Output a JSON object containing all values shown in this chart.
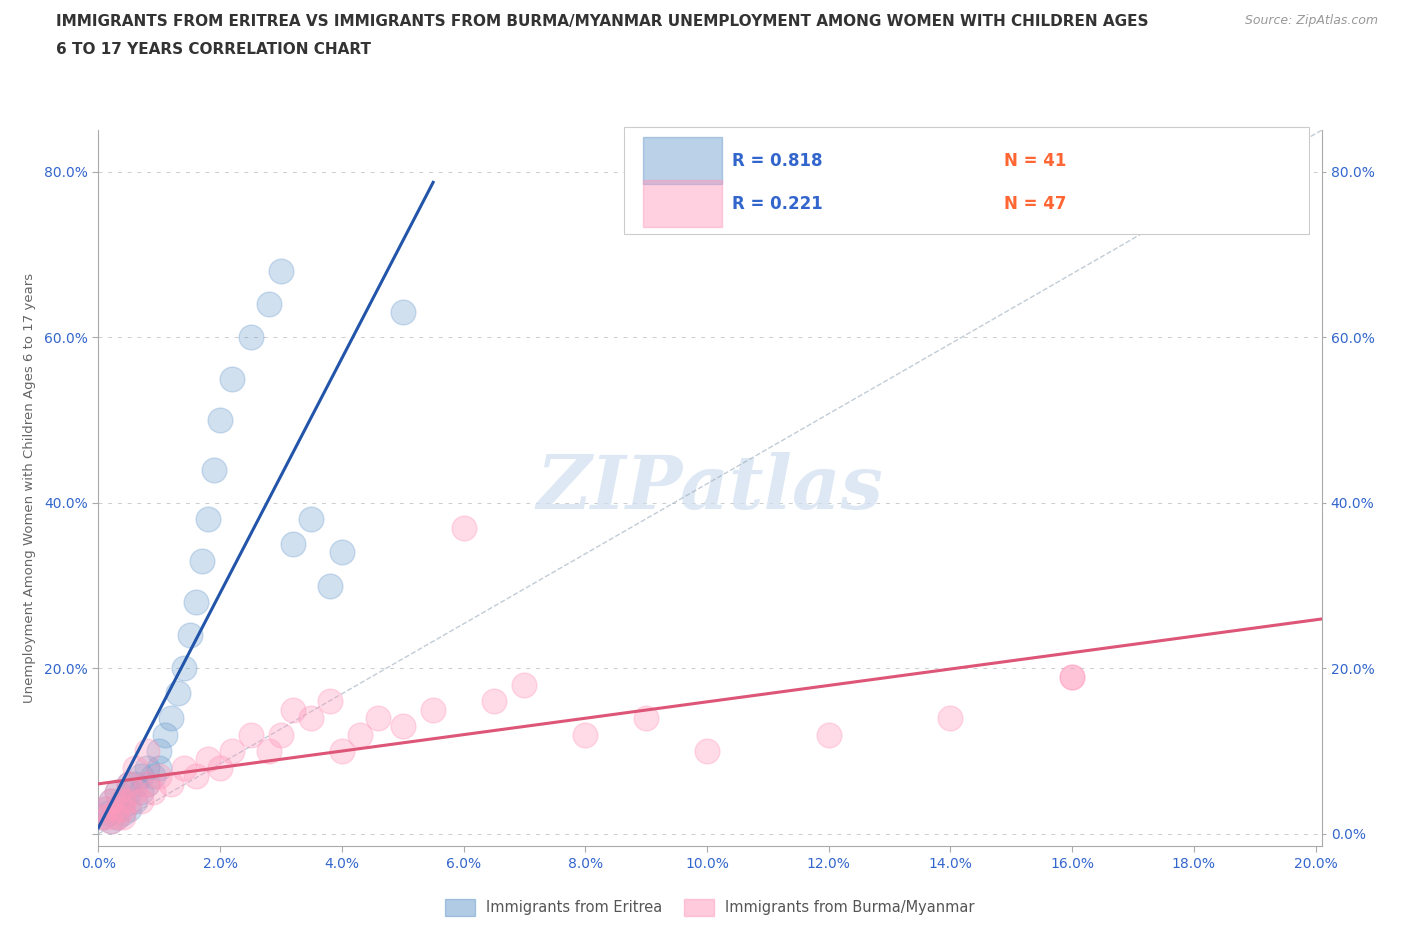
{
  "title_line1": "IMMIGRANTS FROM ERITREA VS IMMIGRANTS FROM BURMA/MYANMAR UNEMPLOYMENT AMONG WOMEN WITH CHILDREN AGES",
  "title_line2": "6 TO 17 YEARS CORRELATION CHART",
  "source": "Source: ZipAtlas.com",
  "ylabel": "Unemployment Among Women with Children Ages 6 to 17 years",
  "xlim": [
    0.0,
    0.201
  ],
  "ylim": [
    -0.015,
    0.85
  ],
  "xticks": [
    0.0,
    0.02,
    0.04,
    0.06,
    0.08,
    0.1,
    0.12,
    0.14,
    0.16,
    0.18,
    0.2
  ],
  "yticks": [
    0.0,
    0.2,
    0.4,
    0.6,
    0.8
  ],
  "xtick_labels": [
    "0.0%",
    "2.0%",
    "4.0%",
    "6.0%",
    "8.0%",
    "10.0%",
    "12.0%",
    "14.0%",
    "16.0%",
    "18.0%",
    "20.0%"
  ],
  "ytick_labels_left": [
    "",
    "20.0%",
    "40.0%",
    "60.0%",
    "80.0%"
  ],
  "ytick_labels_right": [
    "0.0%",
    "20.0%",
    "40.0%",
    "60.0%",
    "80.0%"
  ],
  "eritrea_color": "#6699cc",
  "burma_color": "#ff99bb",
  "eritrea_R": 0.818,
  "eritrea_N": 41,
  "burma_R": 0.221,
  "burma_N": 47,
  "legend_R_color": "#3366cc",
  "legend_N_color": "#ff6633",
  "watermark_color": "#d0dff0",
  "eritrea_x": [
    0.0005,
    0.001,
    0.0015,
    0.002,
    0.002,
    0.003,
    0.003,
    0.003,
    0.004,
    0.004,
    0.005,
    0.005,
    0.005,
    0.006,
    0.006,
    0.007,
    0.007,
    0.008,
    0.008,
    0.009,
    0.01,
    0.01,
    0.011,
    0.012,
    0.013,
    0.014,
    0.015,
    0.016,
    0.017,
    0.018,
    0.019,
    0.02,
    0.022,
    0.025,
    0.028,
    0.03,
    0.032,
    0.035,
    0.038,
    0.04,
    0.05
  ],
  "eritrea_y": [
    0.02,
    0.03,
    0.025,
    0.015,
    0.04,
    0.02,
    0.03,
    0.05,
    0.025,
    0.04,
    0.03,
    0.05,
    0.06,
    0.04,
    0.06,
    0.05,
    0.07,
    0.06,
    0.08,
    0.07,
    0.08,
    0.1,
    0.12,
    0.14,
    0.17,
    0.2,
    0.24,
    0.28,
    0.33,
    0.38,
    0.44,
    0.5,
    0.55,
    0.6,
    0.64,
    0.68,
    0.35,
    0.38,
    0.3,
    0.34,
    0.63
  ],
  "burma_x": [
    0.0005,
    0.001,
    0.0015,
    0.002,
    0.002,
    0.003,
    0.003,
    0.004,
    0.004,
    0.005,
    0.005,
    0.006,
    0.007,
    0.008,
    0.009,
    0.01,
    0.012,
    0.014,
    0.016,
    0.018,
    0.02,
    0.022,
    0.025,
    0.028,
    0.03,
    0.032,
    0.035,
    0.038,
    0.04,
    0.043,
    0.046,
    0.05,
    0.055,
    0.06,
    0.065,
    0.07,
    0.08,
    0.09,
    0.1,
    0.12,
    0.14,
    0.16,
    0.003,
    0.004,
    0.006,
    0.008,
    0.16
  ],
  "burma_y": [
    0.02,
    0.03,
    0.02,
    0.04,
    0.015,
    0.03,
    0.05,
    0.02,
    0.04,
    0.06,
    0.04,
    0.05,
    0.04,
    0.06,
    0.05,
    0.07,
    0.06,
    0.08,
    0.07,
    0.09,
    0.08,
    0.1,
    0.12,
    0.1,
    0.12,
    0.15,
    0.14,
    0.16,
    0.1,
    0.12,
    0.14,
    0.13,
    0.15,
    0.37,
    0.16,
    0.18,
    0.12,
    0.14,
    0.1,
    0.12,
    0.14,
    0.19,
    0.02,
    0.03,
    0.08,
    0.1,
    0.19
  ],
  "background_color": "#ffffff",
  "grid_color": "#cccccc",
  "axis_color": "#aaaaaa",
  "tick_color": "#3366cc",
  "title_color": "#333333",
  "ylabel_color": "#666666"
}
